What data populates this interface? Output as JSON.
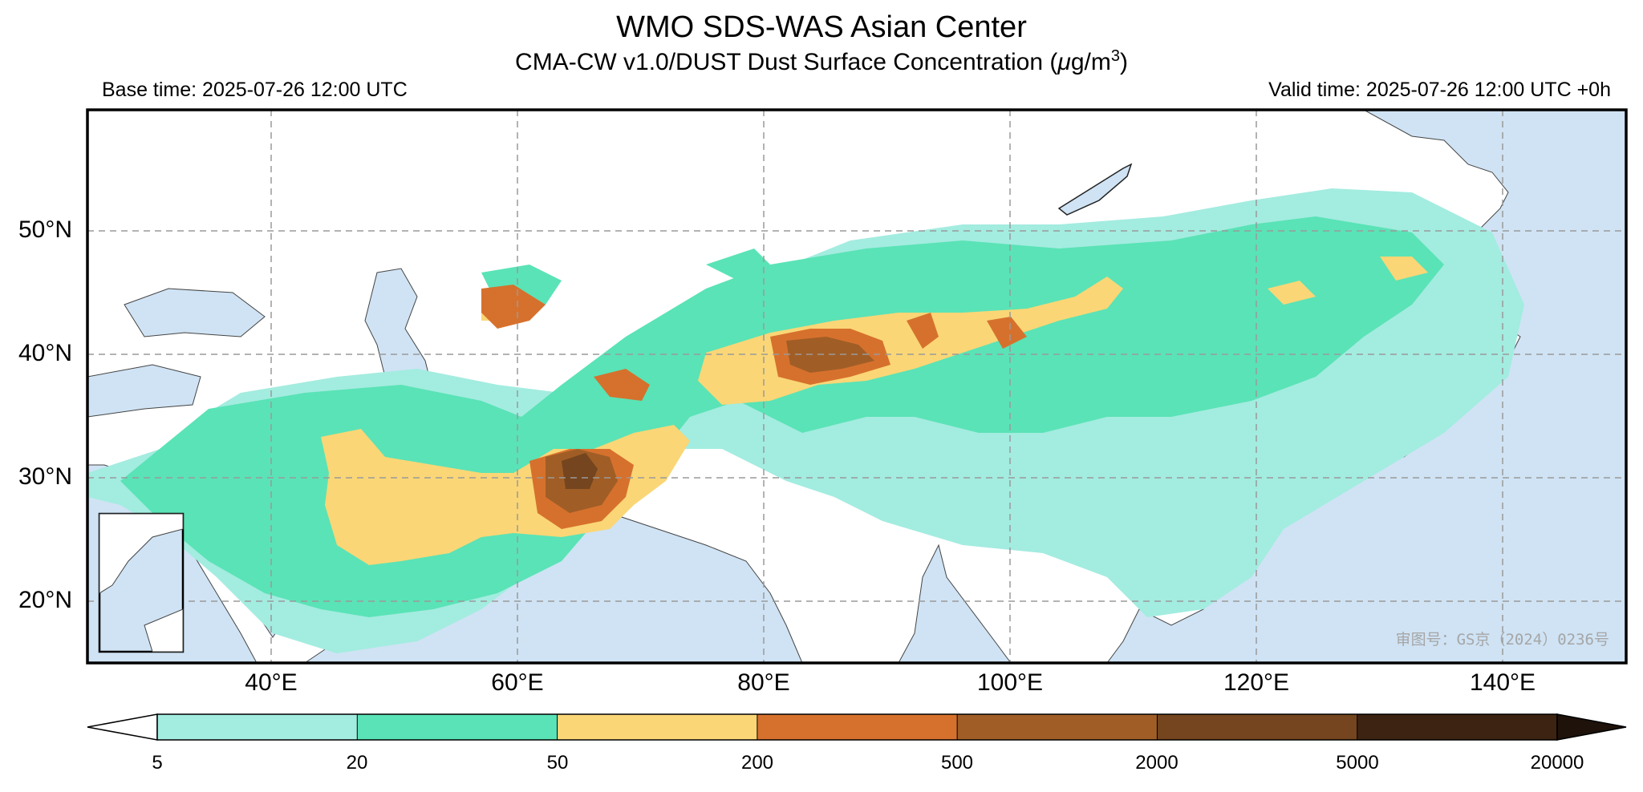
{
  "header": {
    "title": "WMO SDS-WAS Asian Center",
    "subtitle_prefix": "CMA-CW v1.0/DUST Dust Surface Concentration (",
    "subtitle_mu": "μ",
    "subtitle_unit": "g/m",
    "subtitle_exp": "3",
    "subtitle_suffix": ")",
    "base_time": "Base time: 2025-07-26 12:00 UTC",
    "valid_time": "Valid time: 2025-07-26 12:00 UTC +0h"
  },
  "map": {
    "lat_labels": [
      "50°N",
      "40°N",
      "30°N",
      "20°N"
    ],
    "lon_labels": [
      "40°E",
      "60°E",
      "80°E",
      "100°E",
      "120°E",
      "140°E"
    ],
    "watermark": "审图号：GS京（2024）0236号",
    "colors": {
      "ocean": "#cfe3f4",
      "land": "#ffffff",
      "grid": "#9a9a9a"
    }
  },
  "colorbar": {
    "labels": [
      "5",
      "20",
      "50",
      "200",
      "500",
      "2000",
      "5000",
      "20000"
    ],
    "colors": [
      "#a3ece0",
      "#5ae3b6",
      "#fad676",
      "#d6712d",
      "#a05e26",
      "#74451e",
      "#3c2312"
    ]
  }
}
